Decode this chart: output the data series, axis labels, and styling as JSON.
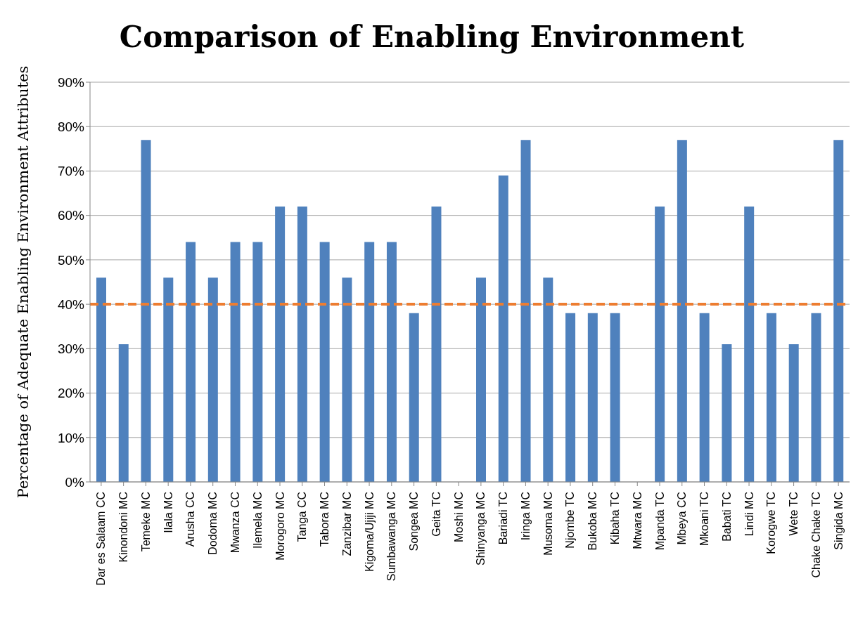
{
  "chart_data": {
    "type": "bar",
    "title": "Comparison of Enabling Environment",
    "ylabel": "Percentage of Adequate Enabling Environment Attributes",
    "categories": [
      "Dar es Salaam CC",
      "Kinondoni MC",
      "Temeke MC",
      "Ilala MC",
      "Arusha CC",
      "Dodoma MC",
      "Mwanza CC",
      "Ilemela MC",
      "Morogoro MC",
      "Tanga CC",
      "Tabora MC",
      "Zanzibar MC",
      "Kigoma/Ujiji MC",
      "Sumbawanga MC",
      "Songea MC",
      "Geita TC",
      "Moshi MC",
      "Shinyanga MC",
      "Bariadi TC",
      "Iringa MC",
      "Musoma MC",
      "Njombe TC",
      "Bukoba  MC",
      "Kibaha TC",
      "Mtwara MC",
      "Mpanda TC",
      "Mbeya CC",
      "Mkoani TC",
      "Babati TC",
      "Lindi MC",
      "Korogwe TC",
      "Wete TC",
      "Chake Chake TC",
      "Singida MC"
    ],
    "values": [
      46,
      31,
      77,
      46,
      54,
      46,
      54,
      54,
      62,
      62,
      54,
      46,
      54,
      54,
      38,
      62,
      0,
      46,
      69,
      77,
      46,
      38,
      38,
      38,
      0,
      62,
      77,
      38,
      31,
      62,
      38,
      31,
      38,
      77
    ],
    "color": "#4f81bd",
    "ylim": [
      0,
      90
    ],
    "yticks": [
      {
        "value": 0,
        "label": "0%"
      },
      {
        "value": 10,
        "label": "10%"
      },
      {
        "value": 20,
        "label": "20%"
      },
      {
        "value": 30,
        "label": "30%"
      },
      {
        "value": 40,
        "label": "40%"
      },
      {
        "value": 50,
        "label": "50%"
      },
      {
        "value": 60,
        "label": "60%"
      },
      {
        "value": 70,
        "label": "70%"
      },
      {
        "value": 80,
        "label": "80%"
      },
      {
        "value": 90,
        "label": "90%"
      }
    ],
    "grid": "y",
    "ref_lines": [
      {
        "axis": "y",
        "value": 40,
        "color": "#ed7d31",
        "line_style": "dashed"
      }
    ]
  }
}
